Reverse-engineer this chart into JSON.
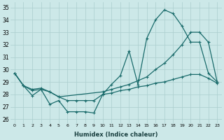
{
  "xlabel": "Humidex (Indice chaleur)",
  "xlim": [
    -0.5,
    23.5
  ],
  "ylim": [
    25.7,
    35.4
  ],
  "yticks": [
    26,
    27,
    28,
    29,
    30,
    31,
    32,
    33,
    34,
    35
  ],
  "xticks": [
    0,
    1,
    2,
    3,
    4,
    5,
    6,
    7,
    8,
    9,
    10,
    11,
    12,
    13,
    14,
    15,
    16,
    17,
    18,
    19,
    20,
    21,
    22,
    23
  ],
  "background_color": "#cce8e8",
  "grid_color": "#aacece",
  "line_color": "#1a6b6b",
  "line1_x": [
    0,
    1,
    2,
    3,
    4,
    5,
    6,
    7,
    8,
    9,
    10,
    11,
    12,
    13,
    14,
    15,
    16,
    17,
    18,
    19,
    20,
    21,
    22,
    23
  ],
  "line1_y": [
    29.7,
    28.7,
    27.9,
    28.4,
    27.2,
    27.5,
    26.6,
    26.6,
    26.6,
    26.5,
    28.0,
    28.8,
    29.5,
    31.5,
    28.8,
    32.5,
    34.0,
    34.8,
    34.5,
    33.5,
    32.2,
    32.2,
    29.7,
    29.0
  ],
  "line2_x": [
    0,
    1,
    2,
    3,
    4,
    5,
    10,
    11,
    12,
    13,
    14,
    15,
    16,
    17,
    18,
    19,
    20,
    21,
    22,
    23
  ],
  "line2_y": [
    29.7,
    28.7,
    28.4,
    28.5,
    28.2,
    27.8,
    28.2,
    28.4,
    28.6,
    28.8,
    29.1,
    29.4,
    30.0,
    30.5,
    31.2,
    32.0,
    33.0,
    33.0,
    32.2,
    29.0
  ],
  "line3_x": [
    0,
    1,
    2,
    3,
    4,
    5,
    6,
    7,
    8,
    9,
    10,
    11,
    12,
    13,
    14,
    15,
    16,
    17,
    18,
    19,
    20,
    21,
    22,
    23
  ],
  "line3_y": [
    29.7,
    28.7,
    28.3,
    28.4,
    28.2,
    27.8,
    27.5,
    27.5,
    27.5,
    27.5,
    28.0,
    28.1,
    28.3,
    28.4,
    28.6,
    28.7,
    28.9,
    29.0,
    29.2,
    29.4,
    29.6,
    29.6,
    29.3,
    28.9
  ]
}
